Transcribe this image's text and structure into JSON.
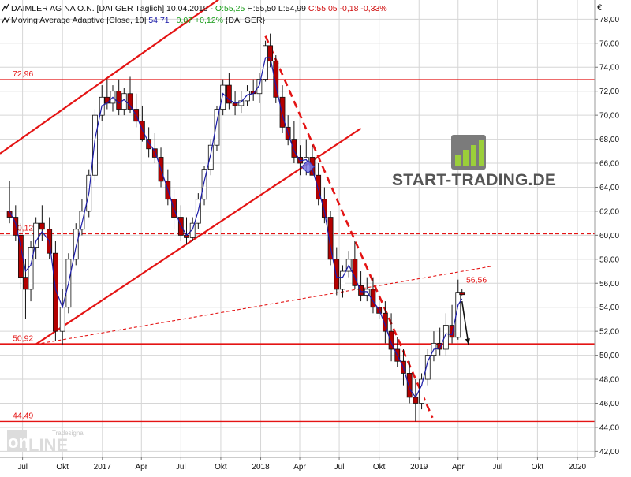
{
  "header": {
    "line1": {
      "icon": "chart-line-icon",
      "title": "DAIMLER AG NA O.N. [DAI GER  Täglich] 10.04.2019 - ",
      "open": "O:55,25",
      "high": " H:55,50 L:54,99 ",
      "close": "C:55,05 -0,18 -0,33%"
    },
    "line2": {
      "icon": "moving-average-icon",
      "title": "Moving Average Adaptive [Close, 10] ",
      "value": "54,71",
      "change": " +0,07 +0,12% ",
      "suffix": "{DAI GER}"
    }
  },
  "currency_label": "€",
  "watermark": {
    "brand": "START-TRADING.DE",
    "logo_icon": "bar-chart-logo-icon"
  },
  "badge": {
    "top": "Tradesignal",
    "main_left": "on",
    "main_right": "LINE"
  },
  "colors": {
    "background": "#ffffff",
    "grid": "#d6d6d6",
    "red": "#e41414",
    "candle_up": "#ffffff",
    "candle_down": "#b30000",
    "ma_line": "#1a1aa8",
    "text": "#111111",
    "green_text": "#169b16"
  },
  "chart_data": {
    "type": "candlestick",
    "x": [
      "2016-06-01",
      "2016-06-15",
      "2016-06-27",
      "2016-07-08",
      "2016-07-20",
      "2016-08-01",
      "2016-08-15",
      "2016-09-01",
      "2016-09-15",
      "2016-10-01",
      "2016-10-15",
      "2016-11-01",
      "2016-11-15",
      "2016-12-01",
      "2016-12-15",
      "2016-12-31",
      "2017-01-12",
      "2017-01-25",
      "2017-02-08",
      "2017-02-20",
      "2017-03-06",
      "2017-03-20",
      "2017-04-03",
      "2017-04-18",
      "2017-05-02",
      "2017-05-16",
      "2017-06-01",
      "2017-06-15",
      "2017-07-01",
      "2017-07-14",
      "2017-07-28",
      "2017-08-10",
      "2017-08-24",
      "2017-09-08",
      "2017-09-22",
      "2017-10-06",
      "2017-10-20",
      "2017-11-03",
      "2017-11-17",
      "2017-12-01",
      "2017-12-15",
      "2017-12-29",
      "2018-01-12",
      "2018-01-23",
      "2018-02-05",
      "2018-02-20",
      "2018-03-05",
      "2018-03-19",
      "2018-04-02",
      "2018-04-16",
      "2018-04-30",
      "2018-05-14",
      "2018-05-28",
      "2018-06-11",
      "2018-06-25",
      "2018-07-09",
      "2018-07-23",
      "2018-08-06",
      "2018-08-20",
      "2018-09-03",
      "2018-09-17",
      "2018-10-01",
      "2018-10-15",
      "2018-10-29",
      "2018-11-12",
      "2018-11-26",
      "2018-12-10",
      "2018-12-24",
      "2019-01-07",
      "2019-01-21",
      "2019-02-04",
      "2019-02-18",
      "2019-03-04",
      "2019-03-18",
      "2019-04-01",
      "2019-04-10"
    ],
    "open": [
      62.0,
      61.5,
      60.0,
      56.5,
      55.5,
      59.0,
      61.0,
      60.5,
      58.5,
      52.0,
      54.0,
      58.0,
      60.5,
      62.0,
      65.0,
      70.0,
      71.5,
      71.0,
      72.0,
      70.5,
      71.8,
      70.5,
      69.5,
      68.0,
      67.2,
      66.5,
      64.5,
      63.0,
      61.5,
      60.0,
      59.8,
      61.0,
      63.0,
      65.5,
      67.5,
      70.5,
      72.5,
      71.0,
      70.8,
      71.2,
      72.0,
      71.8,
      73.0,
      75.8,
      74.5,
      71.5,
      69.0,
      68.0,
      66.5,
      66.0,
      66.5,
      65.0,
      63.0,
      61.5,
      58.0,
      55.5,
      57.0,
      58.0,
      55.8,
      55.0,
      55.5,
      54.0,
      53.5,
      52.0,
      50.5,
      49.5,
      48.5,
      46.5,
      46.0,
      48.0,
      50.0,
      51.0,
      50.5,
      52.5,
      51.5,
      55.25
    ],
    "high": [
      64.5,
      62.5,
      61.0,
      58.0,
      59.5,
      61.5,
      62.5,
      61.5,
      59.5,
      55.5,
      58.5,
      61.0,
      63.0,
      65.5,
      70.5,
      72.5,
      73.0,
      72.5,
      73.0,
      72.3,
      73.2,
      71.8,
      70.8,
      69.0,
      68.5,
      67.3,
      65.5,
      63.8,
      62.5,
      61.5,
      61.5,
      63.5,
      65.8,
      68.0,
      70.8,
      73.0,
      73.5,
      72.0,
      72.0,
      72.5,
      73.0,
      73.5,
      76.2,
      76.8,
      75.0,
      72.5,
      70.0,
      69.5,
      67.5,
      68.0,
      67.5,
      66.0,
      64.0,
      62.0,
      59.0,
      57.5,
      58.7,
      59.5,
      57.0,
      56.5,
      56.5,
      55.0,
      54.5,
      53.5,
      51.5,
      50.5,
      49.5,
      48.0,
      48.5,
      50.5,
      52.0,
      52.3,
      53.5,
      54.2,
      56.3,
      55.5
    ],
    "low": [
      61.0,
      59.5,
      55.5,
      53.0,
      54.5,
      58.0,
      59.5,
      58.0,
      51.2,
      50.9,
      53.5,
      57.5,
      60.0,
      61.5,
      64.5,
      69.5,
      70.5,
      70.3,
      70.0,
      70.0,
      70.2,
      69.0,
      67.8,
      66.5,
      66.0,
      64.0,
      62.5,
      60.5,
      59.5,
      59.3,
      59.5,
      60.5,
      62.5,
      65.0,
      67.0,
      70.0,
      70.5,
      70.0,
      70.2,
      70.8,
      71.2,
      71.0,
      72.8,
      74.0,
      71.0,
      68.5,
      67.5,
      66.0,
      65.0,
      65.0,
      65.0,
      62.5,
      61.0,
      57.5,
      55.0,
      54.8,
      56.5,
      55.5,
      54.5,
      54.5,
      53.5,
      53.0,
      51.0,
      49.5,
      49.0,
      47.5,
      46.0,
      44.49,
      45.5,
      47.5,
      49.5,
      50.0,
      50.0,
      51.0,
      51.3,
      54.99
    ],
    "close": [
      61.5,
      60.0,
      56.5,
      55.5,
      59.0,
      61.0,
      60.5,
      58.5,
      52.0,
      54.0,
      58.0,
      60.5,
      62.0,
      65.0,
      70.0,
      71.5,
      71.0,
      72.0,
      70.5,
      71.8,
      70.5,
      69.5,
      68.0,
      67.2,
      66.5,
      64.5,
      63.0,
      61.5,
      60.0,
      59.8,
      61.0,
      63.0,
      65.5,
      67.5,
      70.5,
      72.5,
      71.0,
      70.8,
      71.2,
      72.0,
      71.8,
      73.0,
      75.8,
      74.5,
      71.5,
      69.0,
      68.0,
      66.5,
      66.0,
      66.5,
      65.0,
      63.0,
      61.5,
      58.0,
      55.5,
      57.0,
      58.0,
      55.8,
      55.0,
      55.5,
      54.0,
      53.5,
      52.0,
      50.5,
      49.5,
      48.5,
      46.5,
      46.0,
      48.0,
      50.0,
      51.0,
      50.5,
      52.5,
      51.5,
      55.25,
      55.05
    ],
    "moving_average_adaptive": [
      62.0,
      61.0,
      59.0,
      57.0,
      57.5,
      59.5,
      60.3,
      59.5,
      55.5,
      54.0,
      56.0,
      59.0,
      61.0,
      63.5,
      68.0,
      70.8,
      71.0,
      71.5,
      71.0,
      71.3,
      70.8,
      70.0,
      68.8,
      67.7,
      67.0,
      65.5,
      63.8,
      62.2,
      60.8,
      60.0,
      60.5,
      62.0,
      64.5,
      66.8,
      69.5,
      71.8,
      71.3,
      71.0,
      71.1,
      71.7,
      71.8,
      72.5,
      74.8,
      74.8,
      72.5,
      70.0,
      68.5,
      67.0,
      66.2,
      66.3,
      65.5,
      63.8,
      62.0,
      59.0,
      56.5,
      56.5,
      57.5,
      56.5,
      55.3,
      55.3,
      54.5,
      53.8,
      52.5,
      51.0,
      50.0,
      49.0,
      47.2,
      46.5,
      47.5,
      49.5,
      50.5,
      50.6,
      51.8,
      51.7,
      54.2,
      54.71
    ],
    "ylim": [
      41.5,
      79.6
    ],
    "y_ticks": [
      42,
      44,
      46,
      48,
      50,
      52,
      54,
      56,
      58,
      60,
      62,
      64,
      66,
      68,
      70,
      72,
      74,
      76,
      78
    ],
    "y_tick_labels": [
      "42,00",
      "44,00",
      "46,00",
      "48,00",
      "50,00",
      "52,00",
      "54,00",
      "56,00",
      "58,00",
      "60,00",
      "62,00",
      "64,00",
      "66,00",
      "68,00",
      "70,00",
      "72,00",
      "74,00",
      "76,00",
      "78,00"
    ],
    "x_ticks": [
      "2016-07-01",
      "2016-10-01",
      "2017-01-01",
      "2017-04-01",
      "2017-07-01",
      "2017-10-01",
      "2018-01-01",
      "2018-04-01",
      "2018-07-01",
      "2018-10-01",
      "2019-01-01",
      "2019-04-01",
      "2019-07-01",
      "2019-10-01",
      "2020-01-01"
    ],
    "x_tick_labels": [
      "Jul",
      "Okt",
      "2017",
      "Apr",
      "Jul",
      "Okt",
      "2018",
      "Apr",
      "Jul",
      "Okt",
      "2019",
      "Apr",
      "Jul",
      "Okt",
      "2020"
    ],
    "x_range": [
      "2016-05-10",
      "2020-02-10"
    ],
    "grid": true,
    "horizontal_lines": [
      {
        "value": 72.96,
        "label": "72,96",
        "style": "solid"
      },
      {
        "value": 60.12,
        "label": "60,12",
        "style": "dashed"
      },
      {
        "value": 50.92,
        "label": "50,92",
        "style": "solid-thick"
      },
      {
        "value": 44.49,
        "label": "44,49",
        "style": "solid"
      }
    ],
    "trendlines": [
      {
        "from": [
          "2016-05-10",
          66.8
        ],
        "to": [
          "2017-10-10",
          80.0
        ],
        "style": "solid"
      },
      {
        "from": [
          "2016-08-01",
          50.92
        ],
        "to": [
          "2018-08-20",
          68.9
        ],
        "style": "solid"
      },
      {
        "from": [
          "2016-08-01",
          50.92
        ],
        "to": [
          "2019-06-15",
          57.4
        ],
        "style": "dashed"
      },
      {
        "from": [
          "2018-01-12",
          76.6
        ],
        "to": [
          "2019-02-01",
          44.8
        ],
        "style": "dashed-thick"
      }
    ],
    "annotations": [
      {
        "type": "price-label",
        "text": "56,56",
        "x": "2019-04-05",
        "y": 56.3
      },
      {
        "type": "arrow",
        "from": [
          "2019-04-10",
          54.5
        ],
        "to": [
          "2019-04-25",
          50.9
        ]
      },
      {
        "type": "marker",
        "shape": "diamond",
        "x": "2018-04-20",
        "y": 65.7
      }
    ]
  }
}
